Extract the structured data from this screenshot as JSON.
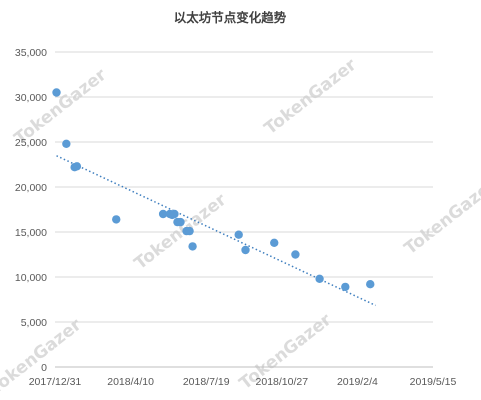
{
  "watermark": "TokenGazer",
  "chart_data": {
    "type": "scatter",
    "title": "以太坊节点变化趋势",
    "xlabel": "",
    "ylabel": "",
    "x_ticks": [
      "2017/12/31",
      "2018/4/10",
      "2018/7/19",
      "2018/10/27",
      "2019/2/4",
      "2019/5/15"
    ],
    "y_ticks": [
      "0",
      "5,000",
      "10,000",
      "15,000",
      "20,000",
      "25,000",
      "30,000",
      "35,000"
    ],
    "xlim": [
      "2017-12-31",
      "2019-05-15"
    ],
    "ylim": [
      0,
      35000
    ],
    "grid": "horizontal",
    "legend": "none",
    "trendline": "linear",
    "colors": {
      "points": "#5b9bd5",
      "trendline": "#3f7fbf",
      "grid": "#d9d9d9",
      "title": "#404040",
      "ticks": "#595959"
    },
    "series": [
      {
        "points": [
          {
            "x": "2018-01-02",
            "y": 30500
          },
          {
            "x": "2018-01-15",
            "y": 24800
          },
          {
            "x": "2018-01-26",
            "y": 22200
          },
          {
            "x": "2018-01-29",
            "y": 22300
          },
          {
            "x": "2018-03-22",
            "y": 16400
          },
          {
            "x": "2018-05-23",
            "y": 17000
          },
          {
            "x": "2018-06-01",
            "y": 17000
          },
          {
            "x": "2018-06-04",
            "y": 16900
          },
          {
            "x": "2018-06-07",
            "y": 17000
          },
          {
            "x": "2018-06-11",
            "y": 16100
          },
          {
            "x": "2018-06-15",
            "y": 16100
          },
          {
            "x": "2018-06-23",
            "y": 15100
          },
          {
            "x": "2018-06-27",
            "y": 15100
          },
          {
            "x": "2018-07-01",
            "y": 13400
          },
          {
            "x": "2018-08-31",
            "y": 14700
          },
          {
            "x": "2018-09-09",
            "y": 13000
          },
          {
            "x": "2018-10-17",
            "y": 13800
          },
          {
            "x": "2018-11-14",
            "y": 12500
          },
          {
            "x": "2018-12-16",
            "y": 9800
          },
          {
            "x": "2019-01-19",
            "y": 8900
          },
          {
            "x": "2019-02-21",
            "y": 9200
          }
        ]
      }
    ]
  }
}
